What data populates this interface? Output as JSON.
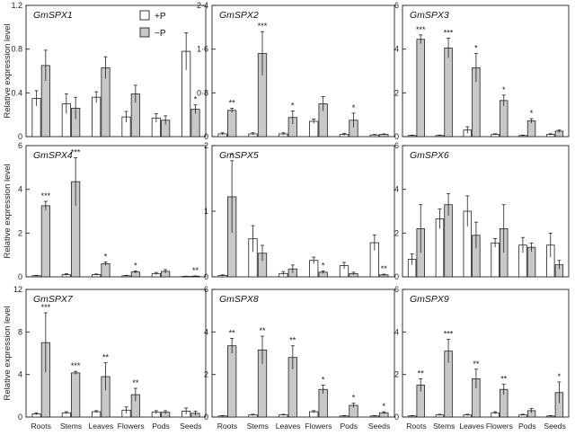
{
  "figure": {
    "ylabel": "Relative expression level",
    "legend": [
      {
        "label": "+P",
        "color": "#ffffff"
      },
      {
        "label": "−P",
        "color": "#c8c8c8"
      }
    ],
    "categories": [
      "Roots",
      "Stems",
      "Leaves",
      "Flowers",
      "Pods",
      "Seeds"
    ]
  },
  "chart_data": [
    {
      "type": "bar",
      "title": "GmSPX1",
      "categories": [
        "Roots",
        "Stems",
        "Leaves",
        "Flowers",
        "Pods",
        "Seeds"
      ],
      "ylim": [
        0,
        1.2
      ],
      "yticks": [
        0,
        0.4,
        0.8,
        1.2
      ],
      "ytick_labels": [
        "0",
        "0.4",
        "0.8",
        "1.2"
      ],
      "ylabel": "Relative expression level",
      "series": [
        {
          "name": "+P",
          "values": [
            0.35,
            0.3,
            0.36,
            0.18,
            0.17,
            0.78
          ],
          "errors": [
            0.07,
            0.09,
            0.05,
            0.05,
            0.04,
            0.17
          ]
        },
        {
          "name": "−P",
          "values": [
            0.65,
            0.26,
            0.63,
            0.39,
            0.15,
            0.25
          ],
          "errors": [
            0.14,
            0.1,
            0.1,
            0.08,
            0.04,
            0.04
          ]
        }
      ],
      "significance": [
        "",
        "",
        "",
        "",
        "",
        "*"
      ]
    },
    {
      "type": "bar",
      "title": "GmSPX2",
      "categories": [
        "Roots",
        "Stems",
        "Leaves",
        "Flowers",
        "Pods",
        "Seeds"
      ],
      "ylim": [
        0,
        2.4
      ],
      "yticks": [
        0,
        0.8,
        1.6,
        2.4
      ],
      "ytick_labels": [
        "0",
        "0·8",
        "1·6",
        "2·4"
      ],
      "ylabel": "",
      "series": [
        {
          "name": "+P",
          "values": [
            0.05,
            0.05,
            0.05,
            0.28,
            0.04,
            0.03
          ],
          "errors": [
            0.02,
            0.02,
            0.02,
            0.04,
            0.02,
            0.01
          ]
        },
        {
          "name": "−P",
          "values": [
            0.48,
            1.52,
            0.35,
            0.6,
            0.3,
            0.04
          ],
          "errors": [
            0.04,
            0.4,
            0.12,
            0.13,
            0.13,
            0.01
          ]
        }
      ],
      "significance": [
        "**",
        "***",
        "*",
        "",
        "*",
        ""
      ]
    },
    {
      "type": "bar",
      "title": "GmSPX3",
      "categories": [
        "Roots",
        "Stems",
        "Leaves",
        "Flowers",
        "Pods",
        "Seeds"
      ],
      "ylim": [
        0,
        6
      ],
      "yticks": [
        0,
        2,
        4,
        6
      ],
      "ytick_labels": [
        "0",
        "2",
        "4",
        "6"
      ],
      "ylabel": "",
      "series": [
        {
          "name": "+P",
          "values": [
            0.05,
            0.05,
            0.3,
            0.1,
            0.05,
            0.1
          ],
          "errors": [
            0.02,
            0.02,
            0.15,
            0.03,
            0.02,
            0.03
          ]
        },
        {
          "name": "−P",
          "values": [
            4.45,
            4.05,
            3.15,
            1.65,
            0.72,
            0.25
          ],
          "errors": [
            0.2,
            0.45,
            0.65,
            0.25,
            0.1,
            0.05
          ]
        }
      ],
      "significance": [
        "***",
        "***",
        "*",
        "*",
        "*",
        ""
      ]
    },
    {
      "type": "bar",
      "title": "GmSPX4",
      "categories": [
        "Roots",
        "Stems",
        "Leaves",
        "Flowers",
        "Pods",
        "Seeds"
      ],
      "ylim": [
        0,
        6
      ],
      "yticks": [
        0,
        2,
        4,
        6
      ],
      "ytick_labels": [
        "0",
        "2",
        "4",
        "6"
      ],
      "ylabel": "Relative expression level",
      "series": [
        {
          "name": "+P",
          "values": [
            0.05,
            0.1,
            0.1,
            0.05,
            0.15,
            0.02
          ],
          "errors": [
            0.02,
            0.04,
            0.03,
            0.02,
            0.05,
            0.01
          ]
        },
        {
          "name": "−P",
          "values": [
            3.25,
            4.35,
            0.6,
            0.22,
            0.25,
            0.03
          ],
          "errors": [
            0.2,
            1.1,
            0.08,
            0.05,
            0.08,
            0.01
          ]
        }
      ],
      "significance": [
        "***",
        "***",
        "*",
        "*",
        "",
        "**"
      ]
    },
    {
      "type": "bar",
      "title": "GmSPX5",
      "categories": [
        "Roots",
        "Stems",
        "Leaves",
        "Flowers",
        "Pods",
        "Seeds"
      ],
      "ylim": [
        0,
        2
      ],
      "yticks": [
        0,
        1,
        2
      ],
      "ytick_labels": [
        "0",
        "1",
        "2"
      ],
      "ylabel": "",
      "series": [
        {
          "name": "+P",
          "values": [
            0.02,
            0.58,
            0.05,
            0.25,
            0.17,
            0.52
          ],
          "errors": [
            0.01,
            0.2,
            0.03,
            0.05,
            0.05,
            0.12
          ]
        },
        {
          "name": "−P",
          "values": [
            1.22,
            0.36,
            0.12,
            0.07,
            0.05,
            0.03
          ],
          "errors": [
            0.55,
            0.12,
            0.06,
            0.02,
            0.02,
            0.01
          ]
        }
      ],
      "significance": [
        "*",
        "",
        "",
        "*",
        "",
        "**"
      ]
    },
    {
      "type": "bar",
      "title": "GmSPX6",
      "categories": [
        "Roots",
        "Stems",
        "Leaves",
        "Flowers",
        "Pods",
        "Seeds"
      ],
      "ylim": [
        0,
        6
      ],
      "yticks": [
        0,
        2,
        4,
        6
      ],
      "ytick_labels": [
        "0",
        "2",
        "4",
        "6"
      ],
      "ylabel": "",
      "series": [
        {
          "name": "+P",
          "values": [
            0.8,
            2.65,
            3.0,
            1.55,
            1.45,
            1.45
          ],
          "errors": [
            0.25,
            0.45,
            0.7,
            0.2,
            0.35,
            0.55
          ]
        },
        {
          "name": "−P",
          "values": [
            2.2,
            3.3,
            1.9,
            2.2,
            1.35,
            0.55
          ],
          "errors": [
            1.1,
            0.5,
            0.6,
            1.1,
            0.2,
            0.2
          ]
        }
      ],
      "significance": [
        "",
        "",
        "",
        "",
        "",
        ""
      ]
    },
    {
      "type": "bar",
      "title": "GmSPX7",
      "categories": [
        "Roots",
        "Stems",
        "Leaves",
        "Flowers",
        "Pods",
        "Seeds"
      ],
      "ylim": [
        0,
        12
      ],
      "yticks": [
        0,
        4,
        8,
        12
      ],
      "ytick_labels": [
        "0",
        "4",
        "8",
        "12"
      ],
      "ylabel": "Relative expression level",
      "series": [
        {
          "name": "+P",
          "values": [
            0.3,
            0.4,
            0.5,
            0.65,
            0.45,
            0.55
          ],
          "errors": [
            0.1,
            0.1,
            0.1,
            0.3,
            0.15,
            0.3
          ]
        },
        {
          "name": "−P",
          "values": [
            7.0,
            4.15,
            3.8,
            2.1,
            0.45,
            0.35
          ],
          "errors": [
            2.8,
            0.15,
            1.3,
            0.6,
            0.15,
            0.2
          ]
        }
      ],
      "significance": [
        "***",
        "***",
        "**",
        "**",
        "",
        ""
      ]
    },
    {
      "type": "bar",
      "title": "GmSPX8",
      "categories": [
        "Roots",
        "Stems",
        "Leaves",
        "Flowers",
        "Pods",
        "Seeds"
      ],
      "ylim": [
        0,
        6
      ],
      "yticks": [
        0,
        2,
        4,
        6
      ],
      "ytick_labels": [
        "0",
        "2",
        "4",
        "6"
      ],
      "ylabel": "",
      "series": [
        {
          "name": "+P",
          "values": [
            0.05,
            0.1,
            0.1,
            0.25,
            0.05,
            0.05
          ],
          "errors": [
            0.02,
            0.03,
            0.03,
            0.05,
            0.02,
            0.02
          ]
        },
        {
          "name": "−P",
          "values": [
            3.35,
            3.15,
            2.8,
            1.3,
            0.55,
            0.2
          ],
          "errors": [
            0.35,
            0.65,
            0.55,
            0.2,
            0.1,
            0.05
          ]
        }
      ],
      "significance": [
        "**",
        "**",
        "**",
        "*",
        "*",
        "*"
      ]
    },
    {
      "type": "bar",
      "title": "GmSPX9",
      "categories": [
        "Roots",
        "Stems",
        "Leaves",
        "Flowers",
        "Pods",
        "Seeds"
      ],
      "ylim": [
        0,
        6
      ],
      "yticks": [
        0,
        2,
        4,
        6
      ],
      "ytick_labels": [
        "0",
        "2",
        "4",
        "6"
      ],
      "ylabel": "",
      "series": [
        {
          "name": "+P",
          "values": [
            0.05,
            0.1,
            0.1,
            0.2,
            0.1,
            0.05
          ],
          "errors": [
            0.02,
            0.03,
            0.03,
            0.05,
            0.03,
            0.02
          ]
        },
        {
          "name": "−P",
          "values": [
            1.5,
            3.1,
            1.8,
            1.3,
            0.3,
            1.15
          ],
          "errors": [
            0.3,
            0.55,
            0.45,
            0.25,
            0.1,
            0.5
          ]
        }
      ],
      "significance": [
        "**",
        "***",
        "**",
        "**",
        "",
        "*"
      ]
    }
  ]
}
